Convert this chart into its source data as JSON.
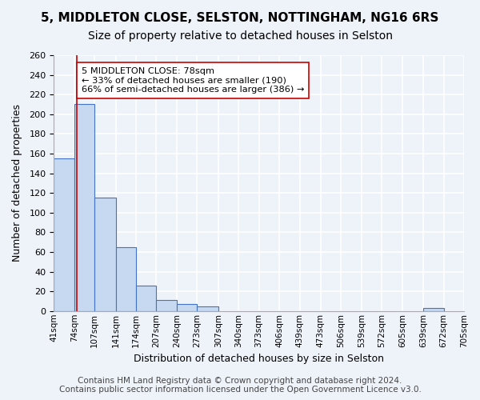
{
  "title_main": "5, MIDDLETON CLOSE, SELSTON, NOTTINGHAM, NG16 6RS",
  "title_sub": "Size of property relative to detached houses in Selston",
  "xlabel": "Distribution of detached houses by size in Selston",
  "ylabel": "Number of detached properties",
  "bin_edges": [
    41,
    74,
    107,
    141,
    174,
    207,
    240,
    273,
    307,
    340,
    373,
    406,
    439,
    473,
    506,
    539,
    572,
    605,
    639,
    672,
    705
  ],
  "bin_labels": [
    "41sqm",
    "74sqm",
    "107sqm",
    "141sqm",
    "174sqm",
    "207sqm",
    "240sqm",
    "273sqm",
    "307sqm",
    "340sqm",
    "373sqm",
    "406sqm",
    "439sqm",
    "473sqm",
    "506sqm",
    "539sqm",
    "572sqm",
    "605sqm",
    "639sqm",
    "672sqm",
    "705sqm"
  ],
  "counts": [
    155,
    210,
    115,
    65,
    26,
    11,
    7,
    5,
    0,
    0,
    0,
    0,
    0,
    0,
    0,
    0,
    0,
    0,
    3,
    0
  ],
  "bar_color": "#c6d9f0",
  "bar_edge_color": "#4472c4",
  "vline_x": 78,
  "vline_color": "#cc0000",
  "ylim": [
    0,
    260
  ],
  "yticks": [
    0,
    20,
    40,
    60,
    80,
    100,
    120,
    140,
    160,
    180,
    200,
    220,
    240,
    260
  ],
  "annotation_title": "5 MIDDLETON CLOSE: 78sqm",
  "annotation_line1": "← 33% of detached houses are smaller (190)",
  "annotation_line2": "66% of semi-detached houses are larger (386) →",
  "annotation_box_color": "#ffffff",
  "annotation_box_edge": "#cc0000",
  "footer1": "Contains HM Land Registry data © Crown copyright and database right 2024.",
  "footer2": "Contains public sector information licensed under the Open Government Licence v3.0.",
  "bg_color": "#eef2f9",
  "plot_bg_color": "#eef2f9",
  "grid_color": "#ffffff",
  "title_fontsize": 11,
  "subtitle_fontsize": 10,
  "footer_fontsize": 7.5
}
